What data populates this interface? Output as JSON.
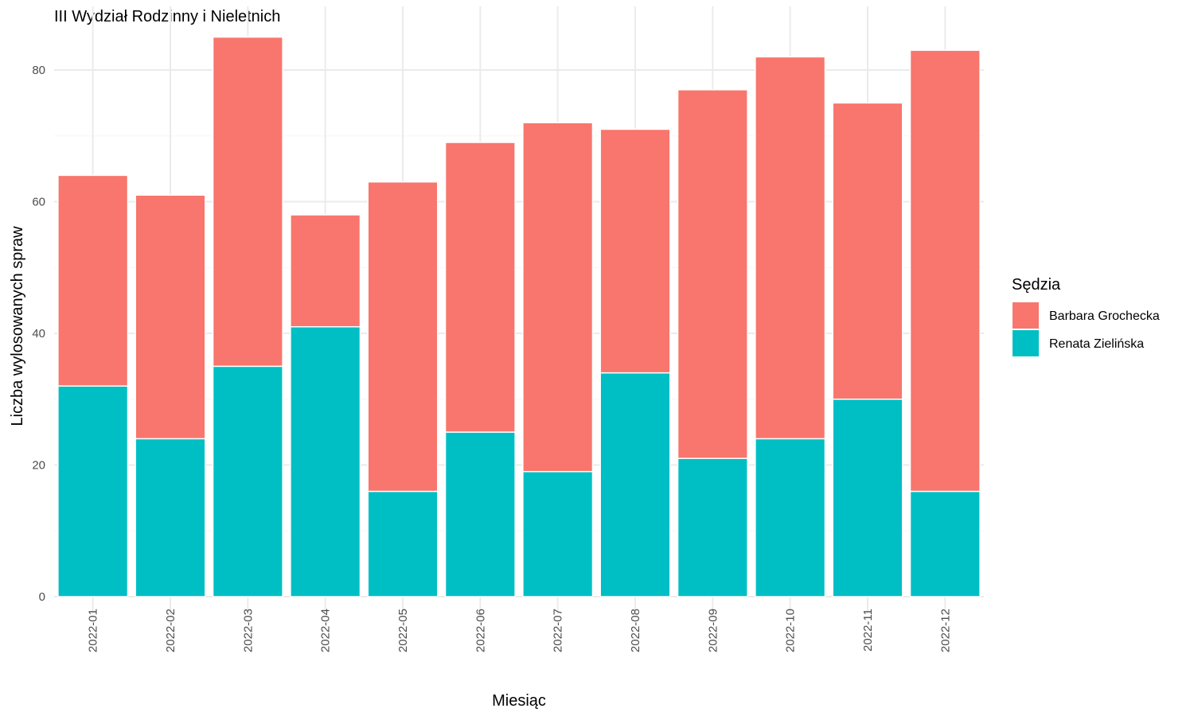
{
  "chart_data": {
    "type": "bar",
    "stacked": true,
    "title": "III Wydział Rodzinny i Nieletnich",
    "xlabel": "Miesiąc",
    "ylabel": "Liczba wylosowanych spraw",
    "categories": [
      "2022-01",
      "2022-02",
      "2022-03",
      "2022-04",
      "2022-05",
      "2022-06",
      "2022-07",
      "2022-08",
      "2022-09",
      "2022-10",
      "2022-11",
      "2022-12"
    ],
    "series": [
      {
        "name": "Renata Zielińska",
        "color": "#00BFC4",
        "values": [
          32,
          24,
          35,
          41,
          16,
          25,
          19,
          34,
          21,
          24,
          30,
          16
        ]
      },
      {
        "name": "Barbara Grochecka",
        "color": "#F8766D",
        "values": [
          32,
          37,
          50,
          17,
          47,
          44,
          53,
          37,
          56,
          58,
          45,
          67
        ]
      }
    ],
    "legend": {
      "title": "Sędzia",
      "entries": [
        "Barbara Grochecka",
        "Renata Zielińska"
      ],
      "placement": "right"
    },
    "yticks": [
      0,
      20,
      40,
      60,
      80
    ],
    "ylim": [
      0,
      89.3
    ],
    "grid": true
  }
}
